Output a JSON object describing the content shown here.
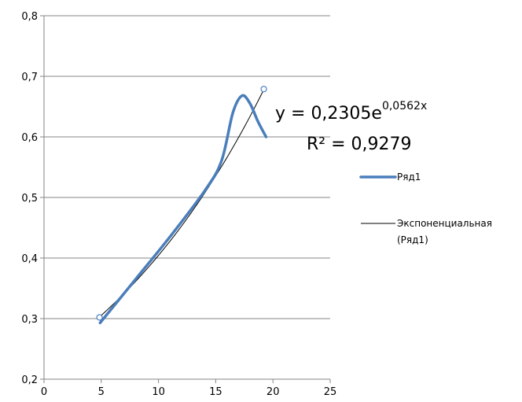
{
  "chart_data": {
    "type": "line",
    "xlim": [
      0,
      25
    ],
    "ylim": [
      0.2,
      0.8
    ],
    "x_ticks": [
      "0",
      "5",
      "10",
      "15",
      "20",
      "25"
    ],
    "y_ticks": [
      "0,2",
      "0,3",
      "0,4",
      "0,5",
      "0,6",
      "0,7",
      "0,8"
    ],
    "grid": "horizontal",
    "legend_position": "right",
    "series": [
      {
        "name": "Ряд1",
        "color": "#4a7ebb",
        "smooth": true,
        "x": [
          4.9,
          8,
          11,
          14,
          15.5,
          16.5,
          17.3,
          18,
          18.7,
          19.4
        ],
        "y": [
          0.293,
          0.365,
          0.435,
          0.51,
          0.56,
          0.64,
          0.668,
          0.655,
          0.625,
          0.6
        ]
      }
    ],
    "markers": [
      {
        "x": 4.85,
        "y": 0.302
      },
      {
        "x": 19.2,
        "y": 0.679
      }
    ],
    "trendline": {
      "name": "Экспоненциальная (Ряд1)",
      "type": "exponential",
      "a": 0.2305,
      "b": 0.0562,
      "x_from": 4.85,
      "x_to": 19.2,
      "color": "#000000"
    },
    "equation_base": "y = 0,2305e",
    "equation_exponent": "0,0562x",
    "r_squared": "R² = 0,9279",
    "legend": [
      {
        "label": "Ряд1",
        "color": "#4a7ebb",
        "width": 3
      },
      {
        "label_line1": "Экспоненциальная",
        "label_line2": "(Ряд1)",
        "color": "#000000",
        "width": 1
      }
    ]
  }
}
